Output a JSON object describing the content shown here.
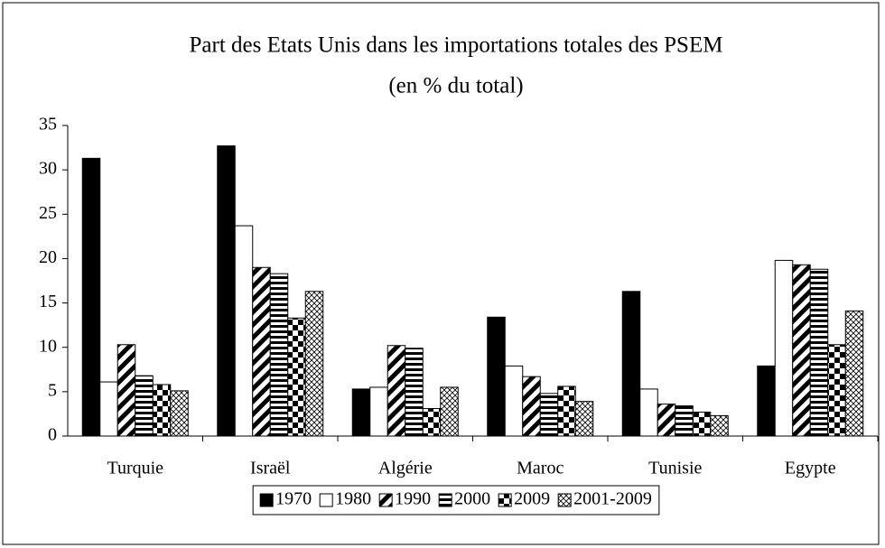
{
  "chart_data": {
    "type": "bar",
    "title": "Part des Etats Unis dans les importations totales des PSEM",
    "subtitle": "(en % du total)",
    "categories": [
      "Turquie",
      "Israël",
      "Algérie",
      "Maroc",
      "Tunisie",
      "Egypte"
    ],
    "series": [
      {
        "name": "1970",
        "pattern": "solid-black",
        "values": [
          31.3,
          32.7,
          5.3,
          13.4,
          16.3,
          7.9
        ]
      },
      {
        "name": "1980",
        "pattern": "white",
        "values": [
          6.1,
          23.7,
          5.5,
          7.9,
          5.3,
          19.8
        ]
      },
      {
        "name": "1990",
        "pattern": "diagonal",
        "values": [
          10.3,
          19.0,
          10.2,
          6.7,
          3.6,
          19.3
        ]
      },
      {
        "name": "2000",
        "pattern": "horizontal",
        "values": [
          6.8,
          18.3,
          9.9,
          4.8,
          3.4,
          18.8
        ]
      },
      {
        "name": "2009",
        "pattern": "checker",
        "values": [
          5.8,
          13.3,
          3.1,
          5.6,
          2.7,
          10.3
        ]
      },
      {
        "name": "2001-2009",
        "pattern": "crosshatch",
        "values": [
          5.1,
          16.3,
          5.5,
          3.9,
          2.3,
          14.1
        ]
      }
    ],
    "ylim": [
      0,
      35
    ],
    "yticks": [
      0,
      5,
      10,
      15,
      20,
      25,
      30,
      35
    ],
    "grid": false,
    "legend": "bottom"
  }
}
